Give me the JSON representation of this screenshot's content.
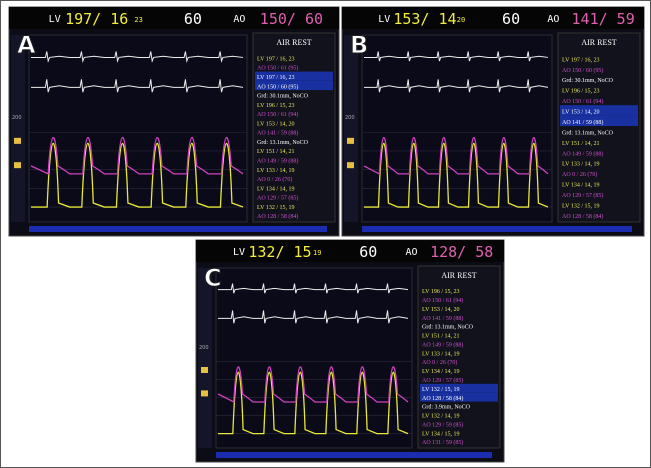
{
  "panels": [
    {
      "label": "A",
      "header": {
        "lv_label": "LV",
        "lv": "197/ 16",
        "lv_extra": "23",
        "hr": "60",
        "ao_label": "AO",
        "ao": "150/ 60"
      },
      "scale_label": "200",
      "sidebar_title": "AIR REST",
      "entries": [
        {
          "text": "LV 197 / 16, 23",
          "color": "#e8e85a"
        },
        {
          "text": "AO 150 / 61 (95)",
          "color": "#d050d0"
        },
        {
          "text": "LV 197 / 16, 23",
          "color": "#ffffff"
        },
        {
          "text": "AO 150 / 60 (95)",
          "color": "#ffffff"
        },
        {
          "text": "Grd: 30.1mm, NoCO",
          "color": "#ffffff"
        },
        {
          "text": "LV 196 / 15, 23",
          "color": "#e8e85a"
        },
        {
          "text": "AO 150 / 61 (94)",
          "color": "#d050d0"
        },
        {
          "text": "LV 153 / 14, 20",
          "color": "#e8e85a"
        },
        {
          "text": "AO 141 / 59 (88)",
          "color": "#d050d0"
        },
        {
          "text": "Grd: 13.1mm, NoCO",
          "color": "#ffffff"
        },
        {
          "text": "LV 151 / 14, 21",
          "color": "#e8e85a"
        },
        {
          "text": "AO 149 / 59 (88)",
          "color": "#d050d0"
        },
        {
          "text": "LV 133 / 14, 19",
          "color": "#e8e85a"
        },
        {
          "text": "AO 0 / 26 (70)",
          "color": "#d050d0"
        },
        {
          "text": "LV 134 / 14, 19",
          "color": "#e8e85a"
        },
        {
          "text": "AO 129 / 57 (85)",
          "color": "#d050d0"
        },
        {
          "text": "LV 132 / 15, 19",
          "color": "#e8e85a"
        },
        {
          "text": "AO 128 / 58 (84)",
          "color": "#d050d0"
        }
      ]
    },
    {
      "label": "B",
      "header": {
        "lv_label": "LV",
        "lv": "153/ 14",
        "lv_extra": "20",
        "hr": "60",
        "ao_label": "AO",
        "ao": "141/ 59"
      },
      "scale_label": "200",
      "sidebar_title": "AIR REST",
      "entries": [
        {
          "text": "LV 197 / 16, 23",
          "color": "#e8e85a"
        },
        {
          "text": "AO 150 / 60 (95)",
          "color": "#d050d0"
        },
        {
          "text": "Grd: 30.1mm, NoCO",
          "color": "#ffffff"
        },
        {
          "text": "LV 196 / 15, 23",
          "color": "#e8e85a"
        },
        {
          "text": "AO 150 / 61 (94)",
          "color": "#d050d0"
        },
        {
          "text": "LV 153 / 14, 20",
          "color": "#ffffff"
        },
        {
          "text": "AO 141 / 59 (88)",
          "color": "#ffffff"
        },
        {
          "text": "Grd: 13.1mm, NoCO",
          "color": "#ffffff"
        },
        {
          "text": "LV 151 / 14, 21",
          "color": "#e8e85a"
        },
        {
          "text": "AO 149 / 59 (88)",
          "color": "#d050d0"
        },
        {
          "text": "LV 133 / 14, 19",
          "color": "#e8e85a"
        },
        {
          "text": "AO 0 / 26 (70)",
          "color": "#d050d0"
        },
        {
          "text": "LV 134 / 14, 19",
          "color": "#e8e85a"
        },
        {
          "text": "AO 129 / 57 (85)",
          "color": "#d050d0"
        },
        {
          "text": "LV 132 / 15, 19",
          "color": "#e8e85a"
        },
        {
          "text": "AO 128 / 58 (84)",
          "color": "#d050d0"
        }
      ]
    },
    {
      "label": "C",
      "header": {
        "lv_label": "LV",
        "lv": "132/ 15",
        "lv_extra": "19",
        "hr": "60",
        "ao_label": "AO",
        "ao": "128/ 58"
      },
      "scale_label": "200",
      "sidebar_title": "AIR REST",
      "entries": [
        {
          "text": "LV 196 / 15, 23",
          "color": "#e8e85a"
        },
        {
          "text": "AO 150 / 61 (94)",
          "color": "#d050d0"
        },
        {
          "text": "LV 153 / 14, 20",
          "color": "#e8e85a"
        },
        {
          "text": "AO 141 / 59 (88)",
          "color": "#d050d0"
        },
        {
          "text": "Grd: 13.1mm, NoCO",
          "color": "#ffffff"
        },
        {
          "text": "LV 151 / 14, 21",
          "color": "#e8e85a"
        },
        {
          "text": "AO 149 / 59 (88)",
          "color": "#d050d0"
        },
        {
          "text": "LV 133 / 14, 19",
          "color": "#e8e85a"
        },
        {
          "text": "AO 0 / 26 (70)",
          "color": "#d050d0"
        },
        {
          "text": "LV 134 / 14, 19",
          "color": "#e8e85a"
        },
        {
          "text": "AO 129 / 57 (85)",
          "color": "#d050d0"
        },
        {
          "text": "LV 132 / 15, 19",
          "color": "#ffffff"
        },
        {
          "text": "AO 128 / 58 (84)",
          "color": "#ffffff"
        },
        {
          "text": "Grd: 3.9mm, NoCO",
          "color": "#ffffff"
        },
        {
          "text": "LV 132 / 14, 19",
          "color": "#e8e85a"
        },
        {
          "text": "AO 129 / 59 (85)",
          "color": "#d050d0"
        },
        {
          "text": "LV 134 / 15, 19",
          "color": "#e8e85a"
        },
        {
          "text": "AO 131 / 59 (85)",
          "color": "#d050d0"
        }
      ]
    }
  ]
}
